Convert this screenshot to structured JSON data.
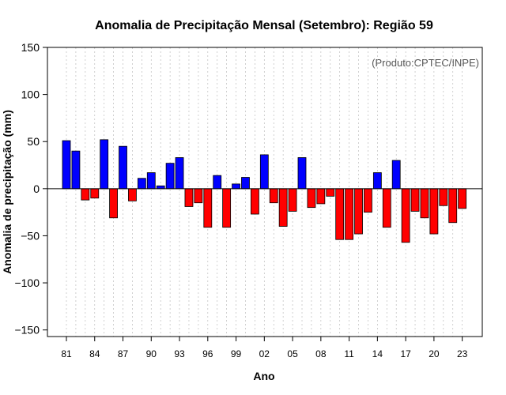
{
  "chart_data": {
    "type": "bar",
    "title": "Anomalia de Precipitação Mensal (Setembro): Região 59",
    "xlabel": "Ano",
    "ylabel": "Anomalia de precipitação (mm)",
    "credit": "(Produto:CPTEC/INPE)",
    "ylim": [
      -157,
      150
    ],
    "yticks": [
      -150,
      -100,
      -50,
      0,
      50,
      100,
      150
    ],
    "categories": [
      "1981",
      "1982",
      "1983",
      "1984",
      "1985",
      "1986",
      "1987",
      "1988",
      "1989",
      "1990",
      "1991",
      "1992",
      "1993",
      "1994",
      "1995",
      "1996",
      "1997",
      "1998",
      "1999",
      "2000",
      "2001",
      "2002",
      "2003",
      "2004",
      "2005",
      "2006",
      "2007",
      "2008",
      "2009",
      "2010",
      "2011",
      "2012",
      "2013",
      "2014",
      "2015",
      "2016",
      "2017",
      "2018",
      "2019",
      "2020",
      "2021",
      "2022",
      "2023"
    ],
    "values": [
      51,
      40,
      -12,
      -10,
      52,
      -31,
      45,
      -13,
      11,
      17,
      3,
      27,
      33,
      -19,
      -15,
      -41,
      14,
      -41,
      5,
      12,
      -27,
      36,
      -15,
      -40,
      -24,
      33,
      -20,
      -16,
      -8,
      -54,
      -54,
      -48,
      -25,
      17,
      -41,
      30,
      -57,
      -24,
      -31,
      -48,
      -18,
      -36,
      -21
    ],
    "xtick_labels": [
      "81",
      "84",
      "87",
      "90",
      "93",
      "96",
      "99",
      "02",
      "05",
      "08",
      "11",
      "14",
      "17",
      "20",
      "23"
    ],
    "colors": {
      "positive": "#0000ff",
      "negative": "#ff0000",
      "outline": "#000000",
      "grid": "#bdbdbd"
    },
    "grid": true
  }
}
